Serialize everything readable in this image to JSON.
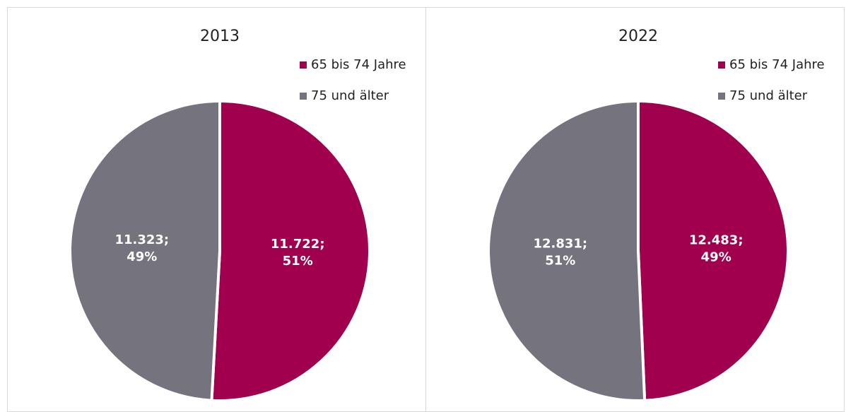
{
  "chart_data": [
    {
      "type": "pie",
      "title": "2013",
      "categories": [
        "65 bis 74 Jahre",
        "75 und älter"
      ],
      "values": [
        11722,
        11323
      ],
      "value_labels": [
        "11.722; 51%",
        "11.323; 49%"
      ],
      "colors": [
        "#a0004e",
        "#75737d"
      ],
      "legend": "top-right"
    },
    {
      "type": "pie",
      "title": "2022",
      "categories": [
        "65 bis 74 Jahre",
        "75 und älter"
      ],
      "values": [
        12483,
        12831
      ],
      "value_labels": [
        "12.483; 49%",
        "12.831; 51%"
      ],
      "colors": [
        "#a0004e",
        "#75737d"
      ],
      "legend": "top-right"
    }
  ]
}
